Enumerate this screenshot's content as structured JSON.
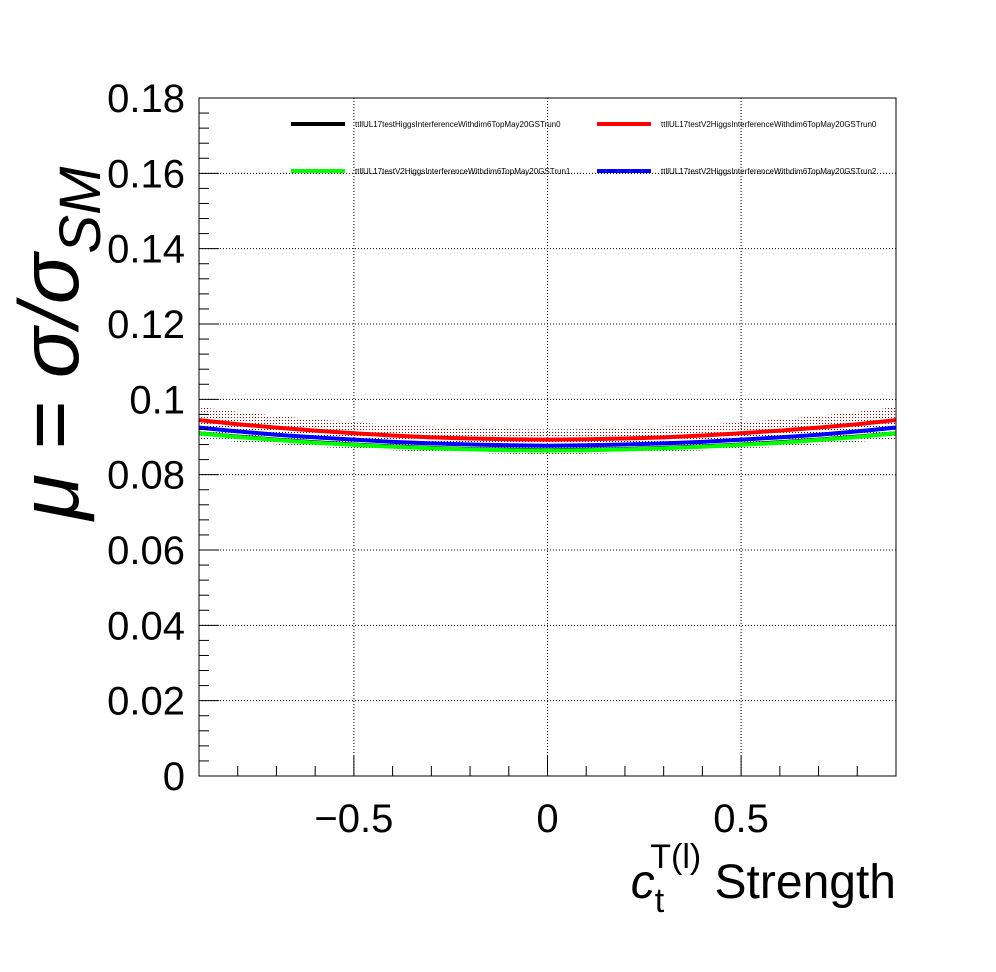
{
  "chart_data": {
    "type": "line",
    "title": "",
    "xlabel": {
      "main": "c",
      "sub": "t",
      "sup": "T(l)",
      "suffix": " Strength"
    },
    "ylabel": {
      "text": "μ = σ/σ",
      "sub": "SM"
    },
    "xlim": [
      -0.9,
      0.9
    ],
    "ylim": [
      0,
      0.18
    ],
    "xticks": [
      -0.5,
      0,
      0.5
    ],
    "xtick_labels": [
      "−0.5",
      "0",
      "0.5"
    ],
    "yticks": [
      0,
      0.02,
      0.04,
      0.06,
      0.08,
      0.1,
      0.12,
      0.14,
      0.16,
      0.18
    ],
    "ytick_labels": [
      "0",
      "0.02",
      "0.04",
      "0.06",
      "0.08",
      "0.1",
      "0.12",
      "0.14",
      "0.16",
      "0.18"
    ],
    "grid": true,
    "legend": "top-right",
    "x": [
      -0.9,
      -0.8,
      -0.7,
      -0.6,
      -0.5,
      -0.4,
      -0.3,
      -0.2,
      -0.1,
      0,
      0.1,
      0.2,
      0.3,
      0.4,
      0.5,
      0.6,
      0.7,
      0.8,
      0.9
    ],
    "series": [
      {
        "name": "ttllUL17testHiggsInterferenceWithdim6TopMay20GSTrun0",
        "color": "#000000",
        "band_color": "#1a1a1a",
        "values": [
          0.091,
          0.0901,
          0.0893,
          0.0886,
          0.088,
          0.0875,
          0.0871,
          0.0868,
          0.0866,
          0.0865,
          0.0866,
          0.0868,
          0.0871,
          0.0875,
          0.088,
          0.0886,
          0.0893,
          0.0901,
          0.091
        ],
        "err": [
          0.0015,
          0.0014,
          0.0013,
          0.0012,
          0.0011,
          0.001,
          0.001,
          0.001,
          0.001,
          0.001,
          0.001,
          0.001,
          0.001,
          0.001,
          0.0011,
          0.0012,
          0.0013,
          0.0014,
          0.0015
        ]
      },
      {
        "name": "ttllUL17testV2HiggsInterferenceWithdim6TopMay20GSTrun0",
        "color": "#ff0000",
        "band_color": "#a00000",
        "values": [
          0.0945,
          0.0934,
          0.0925,
          0.0917,
          0.091,
          0.0904,
          0.0899,
          0.0896,
          0.0894,
          0.0893,
          0.0894,
          0.0896,
          0.0899,
          0.0904,
          0.091,
          0.0917,
          0.0925,
          0.0934,
          0.0945
        ],
        "err": [
          0.0035,
          0.0033,
          0.0031,
          0.003,
          0.0029,
          0.0028,
          0.0028,
          0.0027,
          0.0027,
          0.0027,
          0.0027,
          0.0027,
          0.0028,
          0.0028,
          0.0029,
          0.003,
          0.0031,
          0.0033,
          0.0035
        ]
      },
      {
        "name": "ttllUL17testV2HiggsInterferenceWithdim6TopMay20GSTrun1",
        "color": "#00ff00",
        "band_color": "#006400",
        "values": [
          0.091,
          0.09,
          0.0892,
          0.0885,
          0.0879,
          0.0874,
          0.087,
          0.0867,
          0.0865,
          0.0864,
          0.0865,
          0.0867,
          0.087,
          0.0874,
          0.0879,
          0.0885,
          0.0892,
          0.09,
          0.091
        ],
        "err": [
          0.0012,
          0.0011,
          0.0011,
          0.001,
          0.001,
          0.0009,
          0.0009,
          0.0009,
          0.0009,
          0.0009,
          0.0009,
          0.0009,
          0.0009,
          0.0009,
          0.001,
          0.001,
          0.0011,
          0.0011,
          0.0012
        ]
      },
      {
        "name": "ttllUL17testV2HiggsInterferenceWithdim6TopMay20GSTrun2",
        "color": "#0000ff",
        "band_color": "#00008b",
        "values": [
          0.0925,
          0.0915,
          0.0906,
          0.0899,
          0.0893,
          0.0887,
          0.0883,
          0.088,
          0.0878,
          0.0877,
          0.0878,
          0.088,
          0.0883,
          0.0887,
          0.0893,
          0.0899,
          0.0906,
          0.0915,
          0.0925
        ],
        "err": [
          0.0012,
          0.0011,
          0.0011,
          0.001,
          0.001,
          0.0009,
          0.0009,
          0.0009,
          0.0009,
          0.0009,
          0.0009,
          0.0009,
          0.0009,
          0.0009,
          0.001,
          0.001,
          0.0011,
          0.0011,
          0.0012
        ]
      }
    ]
  }
}
